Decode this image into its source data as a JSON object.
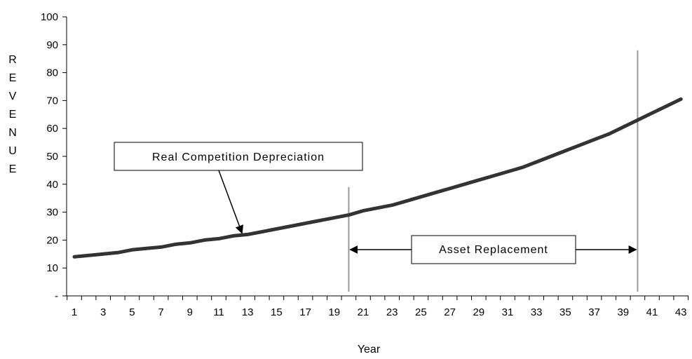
{
  "chart_data": {
    "type": "line",
    "title": "",
    "xlabel": "Year",
    "ylabel": "REVENUE",
    "ylim": [
      0,
      100
    ],
    "xlim": [
      1,
      43
    ],
    "yticks": [
      {
        "value": 0,
        "label": "-"
      },
      {
        "value": 10,
        "label": "10"
      },
      {
        "value": 20,
        "label": "20"
      },
      {
        "value": 30,
        "label": "30"
      },
      {
        "value": 40,
        "label": "40"
      },
      {
        "value": 50,
        "label": "50"
      },
      {
        "value": 60,
        "label": "60"
      },
      {
        "value": 70,
        "label": "70"
      },
      {
        "value": 80,
        "label": "80"
      },
      {
        "value": 90,
        "label": "90"
      },
      {
        "value": 100,
        "label": "100"
      }
    ],
    "xtick_labels": [
      "1",
      "3",
      "5",
      "7",
      "9",
      "11",
      "13",
      "15",
      "17",
      "19",
      "21",
      "23",
      "25",
      "27",
      "29",
      "31",
      "33",
      "35",
      "37",
      "39",
      "41",
      "43"
    ],
    "grid": false,
    "legend": "none",
    "series": [
      {
        "color": "#333333",
        "x": [
          1,
          2,
          3,
          4,
          5,
          6,
          7,
          8,
          9,
          10,
          11,
          12,
          13,
          14,
          15,
          16,
          17,
          18,
          19,
          20,
          21,
          22,
          23,
          24,
          25,
          26,
          27,
          28,
          29,
          30,
          31,
          32,
          33,
          34,
          35,
          36,
          37,
          38,
          39,
          40,
          41,
          42,
          43
        ],
        "values": [
          14,
          14.5,
          15,
          15.5,
          16.5,
          17,
          17.5,
          18.5,
          19,
          20,
          20.5,
          21.5,
          22,
          23,
          24,
          25,
          26,
          27,
          28,
          29,
          30.5,
          31.5,
          32.5,
          34,
          35.5,
          37,
          38.5,
          40,
          41.5,
          43,
          44.5,
          46,
          48,
          50,
          52,
          54,
          56,
          58,
          60.5,
          63,
          65.5,
          68,
          70.5
        ]
      }
    ],
    "vertical_lines": [
      {
        "x": 20,
        "y_top": 39
      },
      {
        "x": 40,
        "y_top": 88
      }
    ],
    "annotations": [
      {
        "text": "Real Competition Depreciation",
        "arrow_to": {
          "x": 13,
          "y": 22
        }
      },
      {
        "text": "Asset Replacement",
        "span": [
          20,
          40
        ],
        "y": 15
      }
    ]
  }
}
